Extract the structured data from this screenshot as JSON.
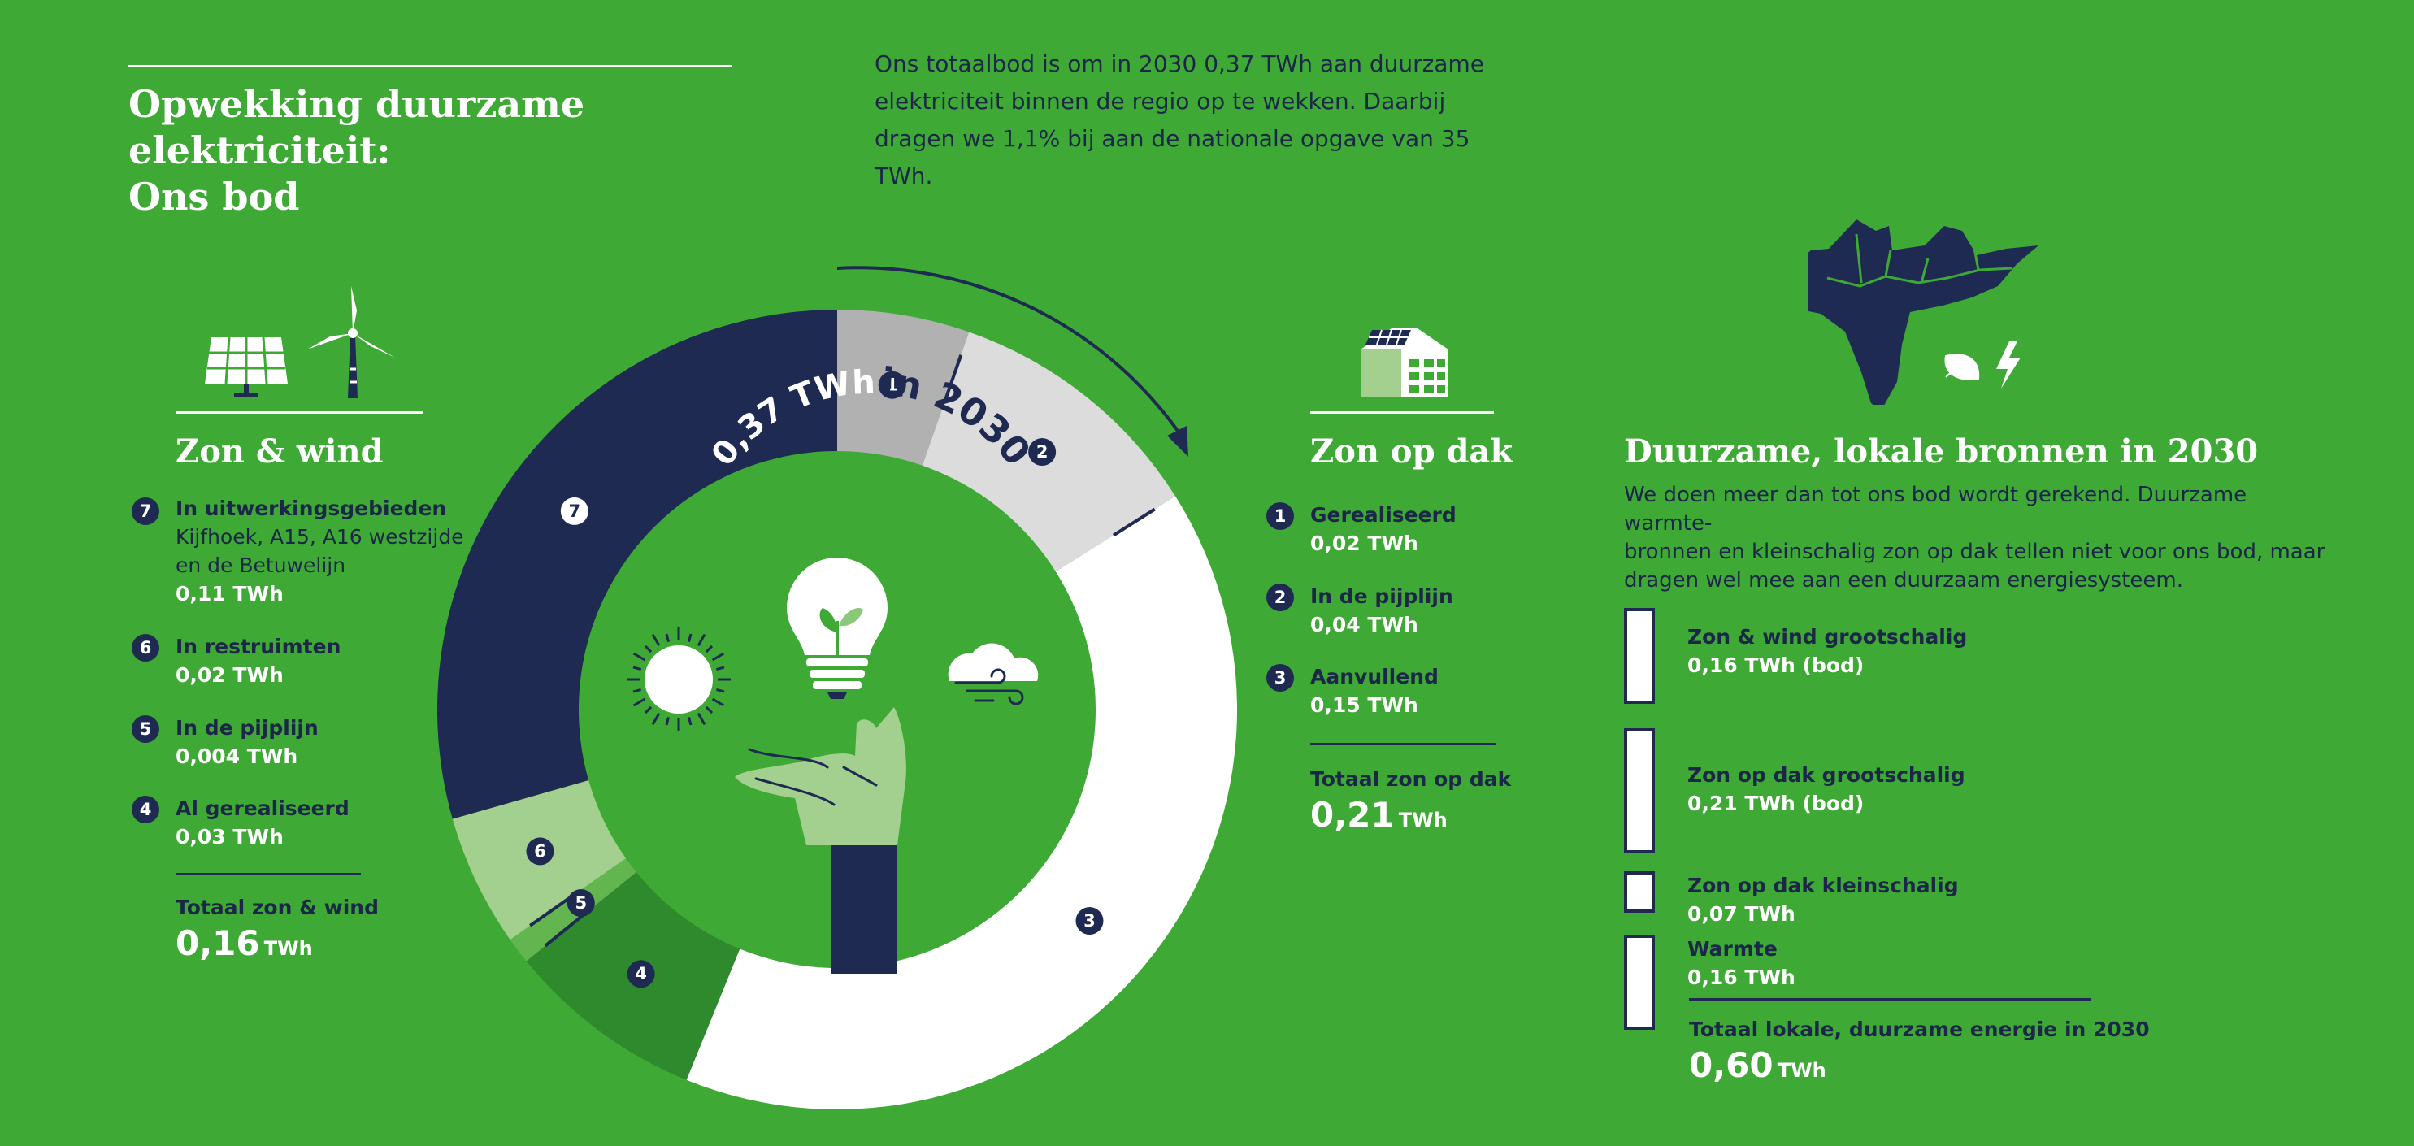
{
  "header": {
    "title_line1": "Opwekking duurzame elektriciteit:",
    "title_line2": "Ons bod",
    "intro": "Ons totaalbod is om in 2030 0,37 TWh aan duurzame elektriciteit binnen de regio op te wekken. Daarbij dragen we 1,1% bij aan de nationale opgave van 35 TWh."
  },
  "zon_wind": {
    "title": "Zon & wind",
    "items": [
      {
        "num": "7",
        "label": "In uitwerkingsgebieden",
        "sub": "Kijfhoek, A15, A16 westzijde en de Betuwelijn",
        "value": "0,11 TWh"
      },
      {
        "num": "6",
        "label": "In restruimten",
        "value": "0,02 TWh"
      },
      {
        "num": "5",
        "label": "In de pijplijn",
        "value": "0,004 TWh"
      },
      {
        "num": "4",
        "label": "Al gerealiseerd",
        "value": "0,03 TWh"
      }
    ],
    "total_label": "Totaal zon & wind",
    "total_value": "0,16",
    "total_unit": "TWh"
  },
  "zon_dak": {
    "title": "Zon op dak",
    "items": [
      {
        "num": "1",
        "label": "Gerealiseerd",
        "value": "0,02 TWh"
      },
      {
        "num": "2",
        "label": "In de pijplijn",
        "value": "0,04 TWh"
      },
      {
        "num": "3",
        "label": "Aanvullend",
        "value": "0,15 TWh"
      }
    ],
    "total_label": "Totaal zon op dak",
    "total_value": "0,21",
    "total_unit": "TWh"
  },
  "lokaal": {
    "title": "Duurzame, lokale bronnen in 2030",
    "desc_lines": [
      "We doen meer dan tot ons bod wordt gerekend. Duurzame warmte-",
      "bronnen en kleinschalig zon op dak tellen niet voor ons bod, maar",
      "dragen wel mee aan een duurzaam energiesysteem."
    ],
    "total_label": "Totaal lokale, duurzame energie in 2030",
    "total_value": "0,60",
    "total_unit": "TWh"
  },
  "donut_center": {
    "value": "0,37 TWh",
    "suffix": "in 2030"
  },
  "colors": {
    "background": "#3eaa35",
    "navy": "#1f2a52",
    "seg1": "#b1b1b1",
    "seg2": "#dcdcdc",
    "seg3": "#ffffff",
    "seg4": "#2e8a2c",
    "seg5": "#62b54f",
    "seg6": "#a3d08e",
    "seg7": "#1f2a52",
    "hand": "#a3d08e"
  },
  "chart_data": [
    {
      "type": "pie",
      "categories": [
        "1",
        "2",
        "3",
        "4",
        "5",
        "6",
        "7"
      ],
      "values": [
        0.02,
        0.04,
        0.15,
        0.03,
        0.004,
        0.02,
        0.11
      ],
      "unit": "TWh"
    },
    {
      "type": "bar",
      "categories": [
        "Zon & wind grootschalig",
        "Zon op dak grootschalig",
        "Zon op dak kleinschalig",
        "Warmte"
      ],
      "value_labels": [
        "0,16 TWh (bod)",
        "0,21 TWh (bod)",
        "0,07 TWh",
        "0,16 TWh"
      ],
      "values": [
        0.16,
        0.21,
        0.07,
        0.16
      ],
      "unit": "TWh"
    }
  ]
}
